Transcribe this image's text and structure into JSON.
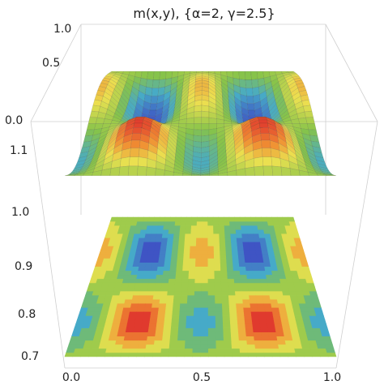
{
  "chart_data": {
    "type": "surface3d",
    "title": "m(x,y), {α=2, γ=2.5}",
    "x_ticks": [
      "0.0",
      "0.5",
      "1.0"
    ],
    "y_ticks": [
      "0.0",
      "0.5",
      "1.0"
    ],
    "z_ticks": [
      "0.7",
      "0.8",
      "0.9",
      "1.0",
      "1.1"
    ],
    "x_range": [
      0,
      1
    ],
    "y_range": [
      0,
      1
    ],
    "z_range": [
      0.7,
      1.15
    ],
    "surface_peaks": [
      {
        "x": 0.25,
        "y": 0.25,
        "z": 1.13
      },
      {
        "x": 0.75,
        "y": 0.25,
        "z": 1.13
      }
    ],
    "surface_minima": [
      {
        "x": 0.25,
        "y": 0.75,
        "z": 0.93
      },
      {
        "x": 0.75,
        "y": 0.75,
        "z": 0.93
      }
    ],
    "has_contour_projection": true,
    "colormap": "blue-green-yellow-red",
    "colors": {
      "low": "#3f54c4",
      "mid": "#86c34a",
      "high": "#e03a2e",
      "contour_base": "#7fae3a"
    }
  }
}
